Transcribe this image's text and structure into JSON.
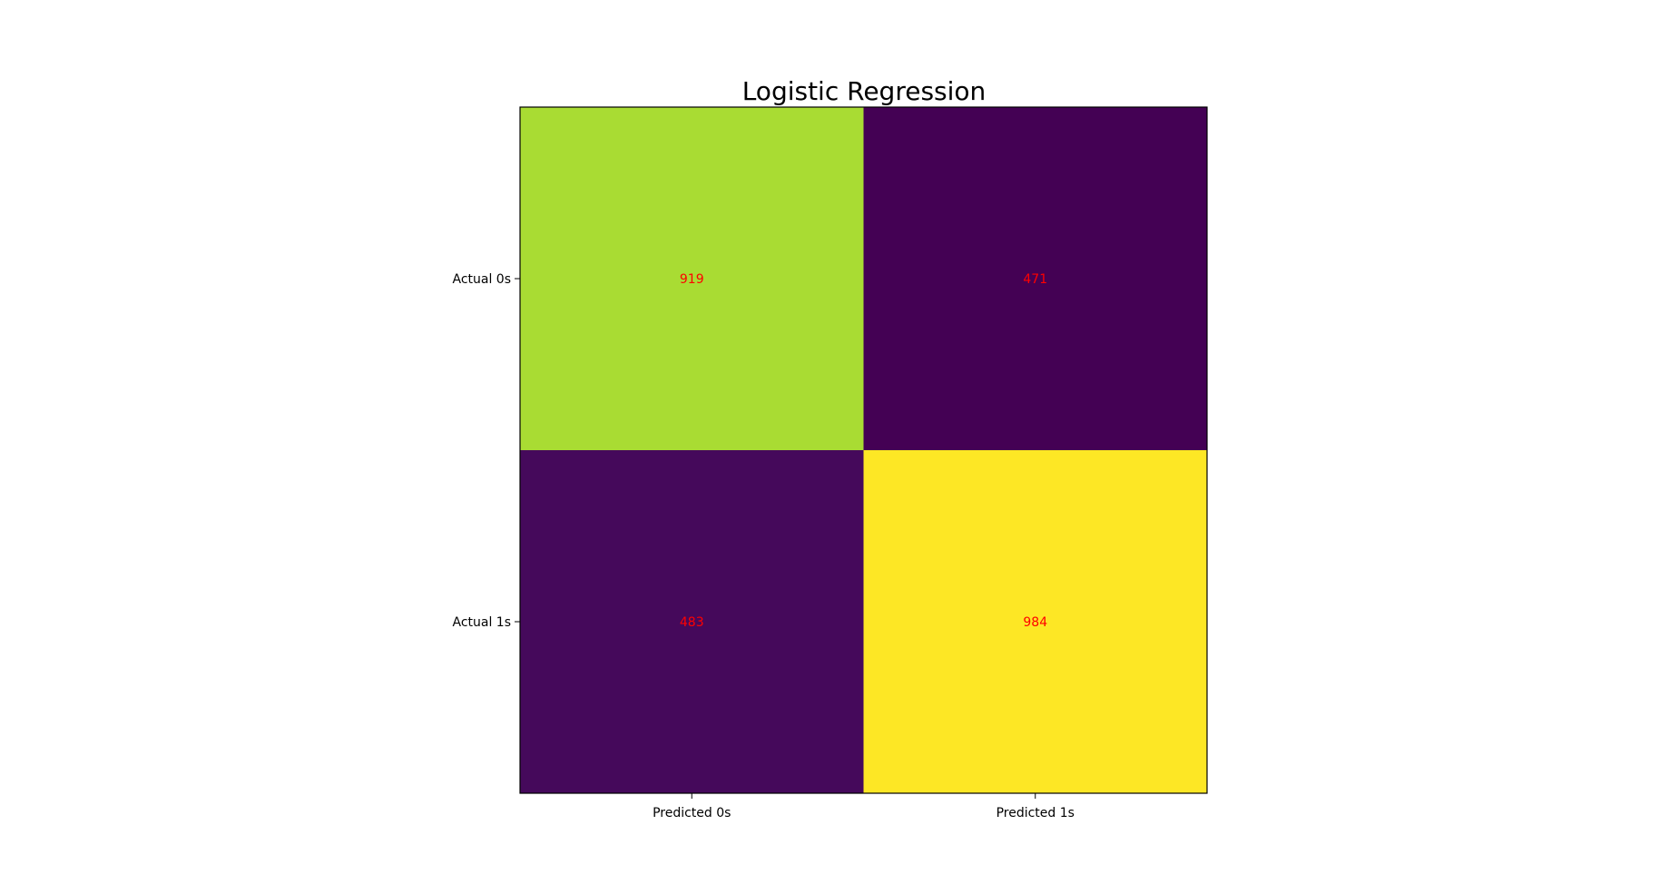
{
  "chart_data": {
    "type": "heatmap",
    "title": "Logistic Regression",
    "x_tick_labels": [
      "Predicted 0s",
      "Predicted 1s"
    ],
    "y_tick_labels": [
      "Actual 0s",
      "Actual 1s"
    ],
    "values": [
      [
        919,
        471
      ],
      [
        483,
        984
      ]
    ],
    "colormap": "viridis",
    "value_text_color": "#ff0000",
    "grid": false,
    "legend": "none"
  }
}
